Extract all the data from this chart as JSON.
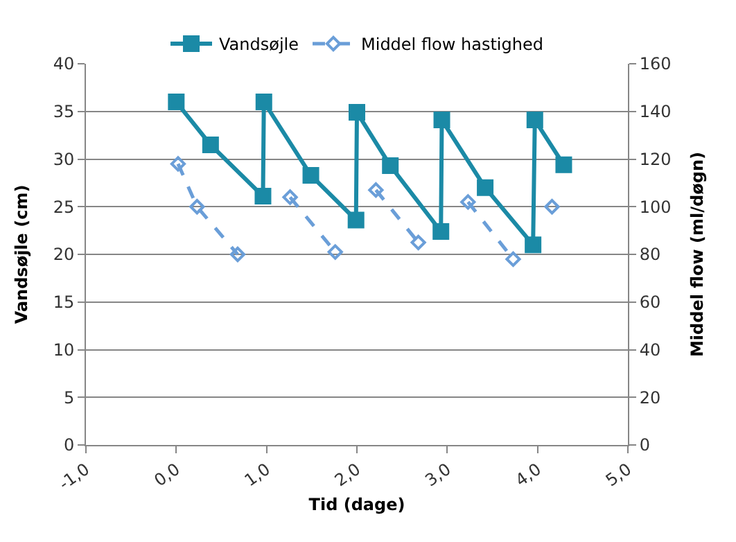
{
  "chart_data": {
    "type": "line",
    "xlabel": "Tid (dage)",
    "ylabel": "Vandsøjle (cm)",
    "y2label": "Middel flow (ml/døgn)",
    "xlim": [
      -1,
      5
    ],
    "xticks": [
      {
        "value": -1,
        "label": "-1,0"
      },
      {
        "value": 0,
        "label": "0,0"
      },
      {
        "value": 1,
        "label": "1,0"
      },
      {
        "value": 2,
        "label": "2,0"
      },
      {
        "value": 3,
        "label": "3,0"
      },
      {
        "value": 4,
        "label": "4,0"
      },
      {
        "value": 5,
        "label": "5,0"
      }
    ],
    "ylim": [
      0,
      40
    ],
    "yticks": [
      0,
      5,
      10,
      15,
      20,
      25,
      30,
      35,
      40
    ],
    "y2lim": [
      0,
      160
    ],
    "y2ticks": [
      0,
      20,
      40,
      60,
      80,
      100,
      120,
      140,
      160
    ],
    "grid": "y",
    "legend": "top",
    "series": [
      {
        "name": "Vandsøjle",
        "color": "#1b8aa6",
        "marker": "square",
        "line_style": "solid",
        "x": [
          0.0,
          0.38,
          0.96,
          0.97,
          1.49,
          1.99,
          2.0,
          2.37,
          2.93,
          2.94,
          3.42,
          3.95,
          3.97,
          4.29
        ],
        "values": [
          36.0,
          31.5,
          26.1,
          36.0,
          28.3,
          23.6,
          34.9,
          29.3,
          22.4,
          34.1,
          27.0,
          21.0,
          34.1,
          29.4
        ]
      },
      {
        "name": "Middel flow hastighed",
        "axis": "y2",
        "color": "#6a9ed8",
        "marker": "diamond",
        "line_style": "dashed",
        "x": [
          0.02,
          0.23,
          0.68,
          0.97,
          1.26,
          1.76,
          2.0,
          2.21,
          2.68,
          2.95,
          3.23,
          3.73,
          3.95,
          4.16
        ],
        "values": [
          118,
          100,
          80,
          null,
          104,
          81,
          null,
          107,
          85,
          null,
          102,
          78,
          null,
          100
        ]
      }
    ]
  }
}
